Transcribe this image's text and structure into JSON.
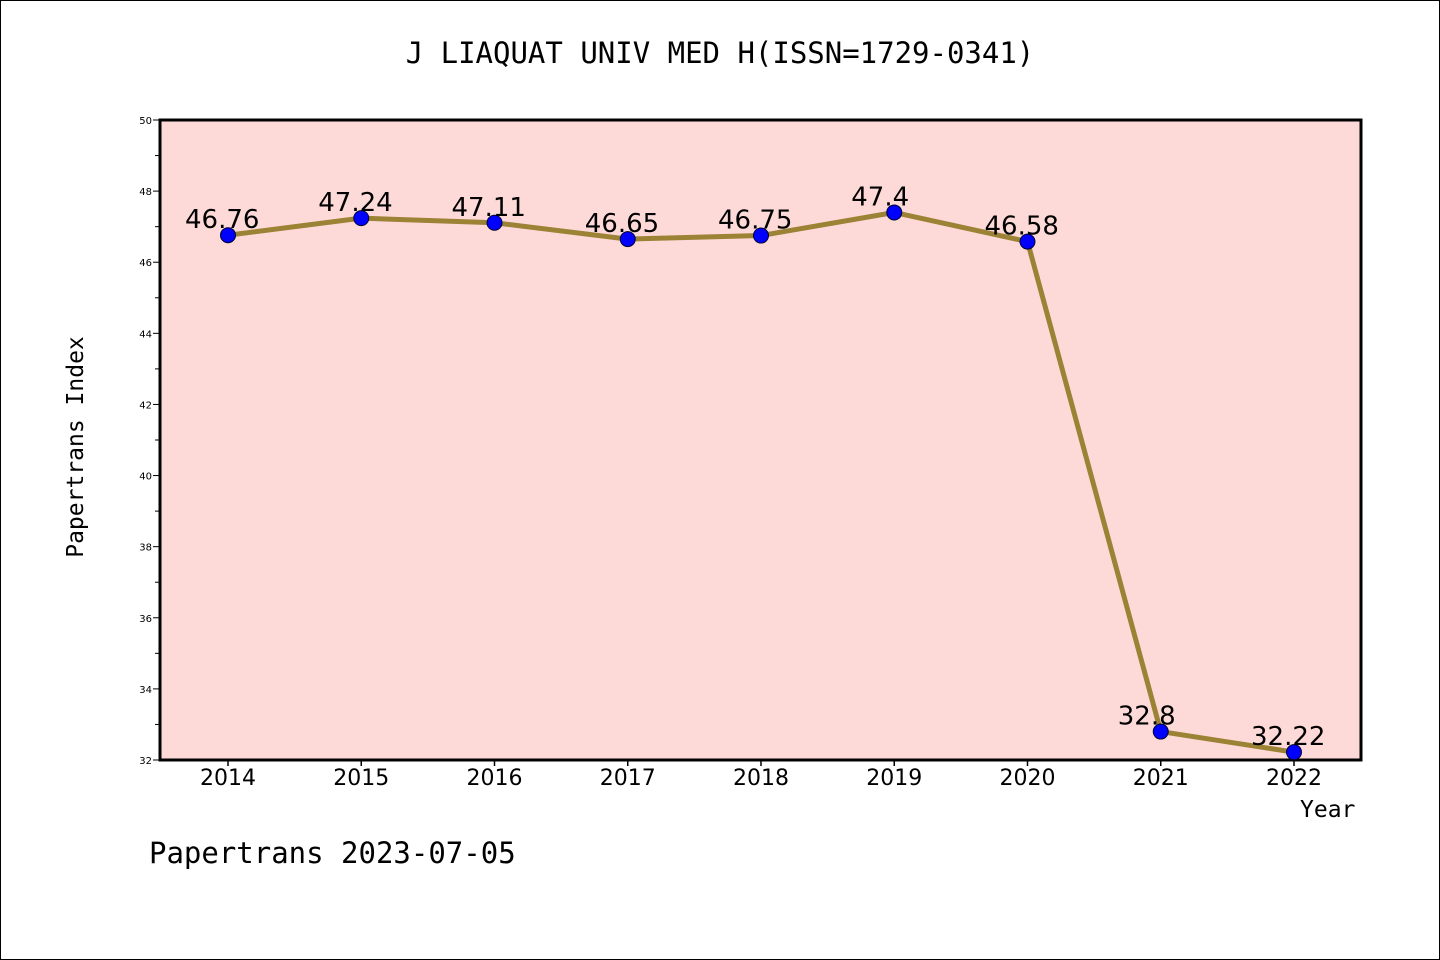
{
  "chart_data": {
    "type": "line",
    "title": "J LIAQUAT UNIV MED H(ISSN=1729-0341)",
    "xlabel": "Year",
    "ylabel": "Papertrans Index",
    "categories": [
      "2014",
      "2015",
      "2016",
      "2017",
      "2018",
      "2019",
      "2020",
      "2021",
      "2022"
    ],
    "values": [
      46.76,
      47.24,
      47.11,
      46.65,
      46.75,
      47.4,
      46.58,
      32.8,
      32.22
    ],
    "data_labels": [
      "46.76",
      "47.24",
      "47.11",
      "46.65",
      "46.75",
      "47.4",
      "46.58",
      "32.8",
      "32.22"
    ],
    "ylim": [
      32,
      50
    ],
    "yticks": [
      "32",
      "34",
      "36",
      "38",
      "40",
      "42",
      "44",
      "46",
      "48",
      "50"
    ],
    "grid": false,
    "legend": "none",
    "line_color": "#9b8235",
    "marker_color": "#0000ff",
    "plot_background": "#fddad8"
  },
  "footer": "Papertrans 2023-07-05"
}
